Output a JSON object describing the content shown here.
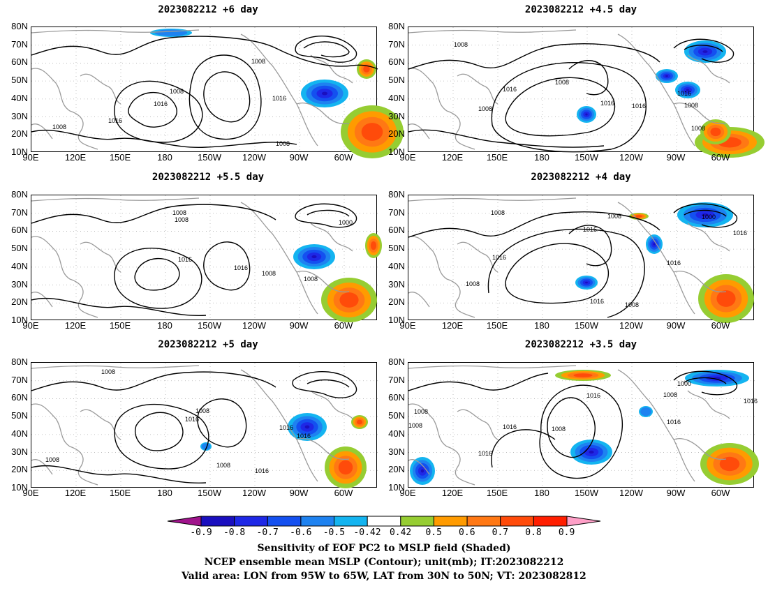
{
  "panels": [
    {
      "title": "2023082212 +6 day"
    },
    {
      "title": "2023082212 +4.5 day"
    },
    {
      "title": "2023082212 +5.5 day"
    },
    {
      "title": "2023082212 +4 day"
    },
    {
      "title": "2023082212 +5 day"
    },
    {
      "title": "2023082212 +3.5 day"
    }
  ],
  "axes": {
    "lat_labels": [
      "80N",
      "70N",
      "60N",
      "50N",
      "40N",
      "30N",
      "20N",
      "10N"
    ],
    "lon_labels": [
      "90E",
      "120E",
      "150E",
      "180",
      "150W",
      "120W",
      "90W",
      "60W"
    ]
  },
  "contour_labels": {
    "p1": [
      "1008",
      "1008",
      "1016",
      "1016",
      "1008",
      "1016",
      "1008"
    ],
    "p2": [
      "1008",
      "1016",
      "1008",
      "1016",
      "1008",
      "1016",
      "1008",
      "1016",
      "1008"
    ],
    "p3": [
      "1008",
      "1008",
      "1000",
      "1016",
      "1016",
      "1008",
      "1008"
    ],
    "p4": [
      "1008",
      "1008",
      "1016",
      "1000",
      "1016",
      "1016",
      "1016",
      "1008",
      "1016",
      "1008"
    ],
    "p5": [
      "1008",
      "1008",
      "1016",
      "1016",
      "1016",
      "1008",
      "1016",
      "1008"
    ],
    "p6": [
      "1008",
      "1000",
      "1008",
      "1016",
      "1016",
      "1016",
      "1008",
      "1016",
      "1016",
      "1008"
    ]
  },
  "colorbar": {
    "labels": [
      "-0.9",
      "-0.8",
      "-0.7",
      "-0.6",
      "-0.5",
      "-0.42",
      "0.42",
      "0.5",
      "0.6",
      "0.7",
      "0.8",
      "0.9"
    ],
    "colors": [
      "#a0148c",
      "#1a0fbf",
      "#1e28e6",
      "#1450f0",
      "#1e82f0",
      "#14b4f0",
      "#ffffff",
      "#96cd32",
      "#ff9b00",
      "#ff7814",
      "#ff4b0a",
      "#ff1e00",
      "#ffa0c8"
    ]
  },
  "captions": {
    "line1": "Sensitivity of EOF PC2 to MSLP field (Shaded)",
    "line2": "NCEP ensemble mean MSLP (Contour); unit(mb); IT:2023082212",
    "line3": "Valid area: LON from 95W to 65W, LAT from 30N to 50N; VT: 2023082812"
  }
}
